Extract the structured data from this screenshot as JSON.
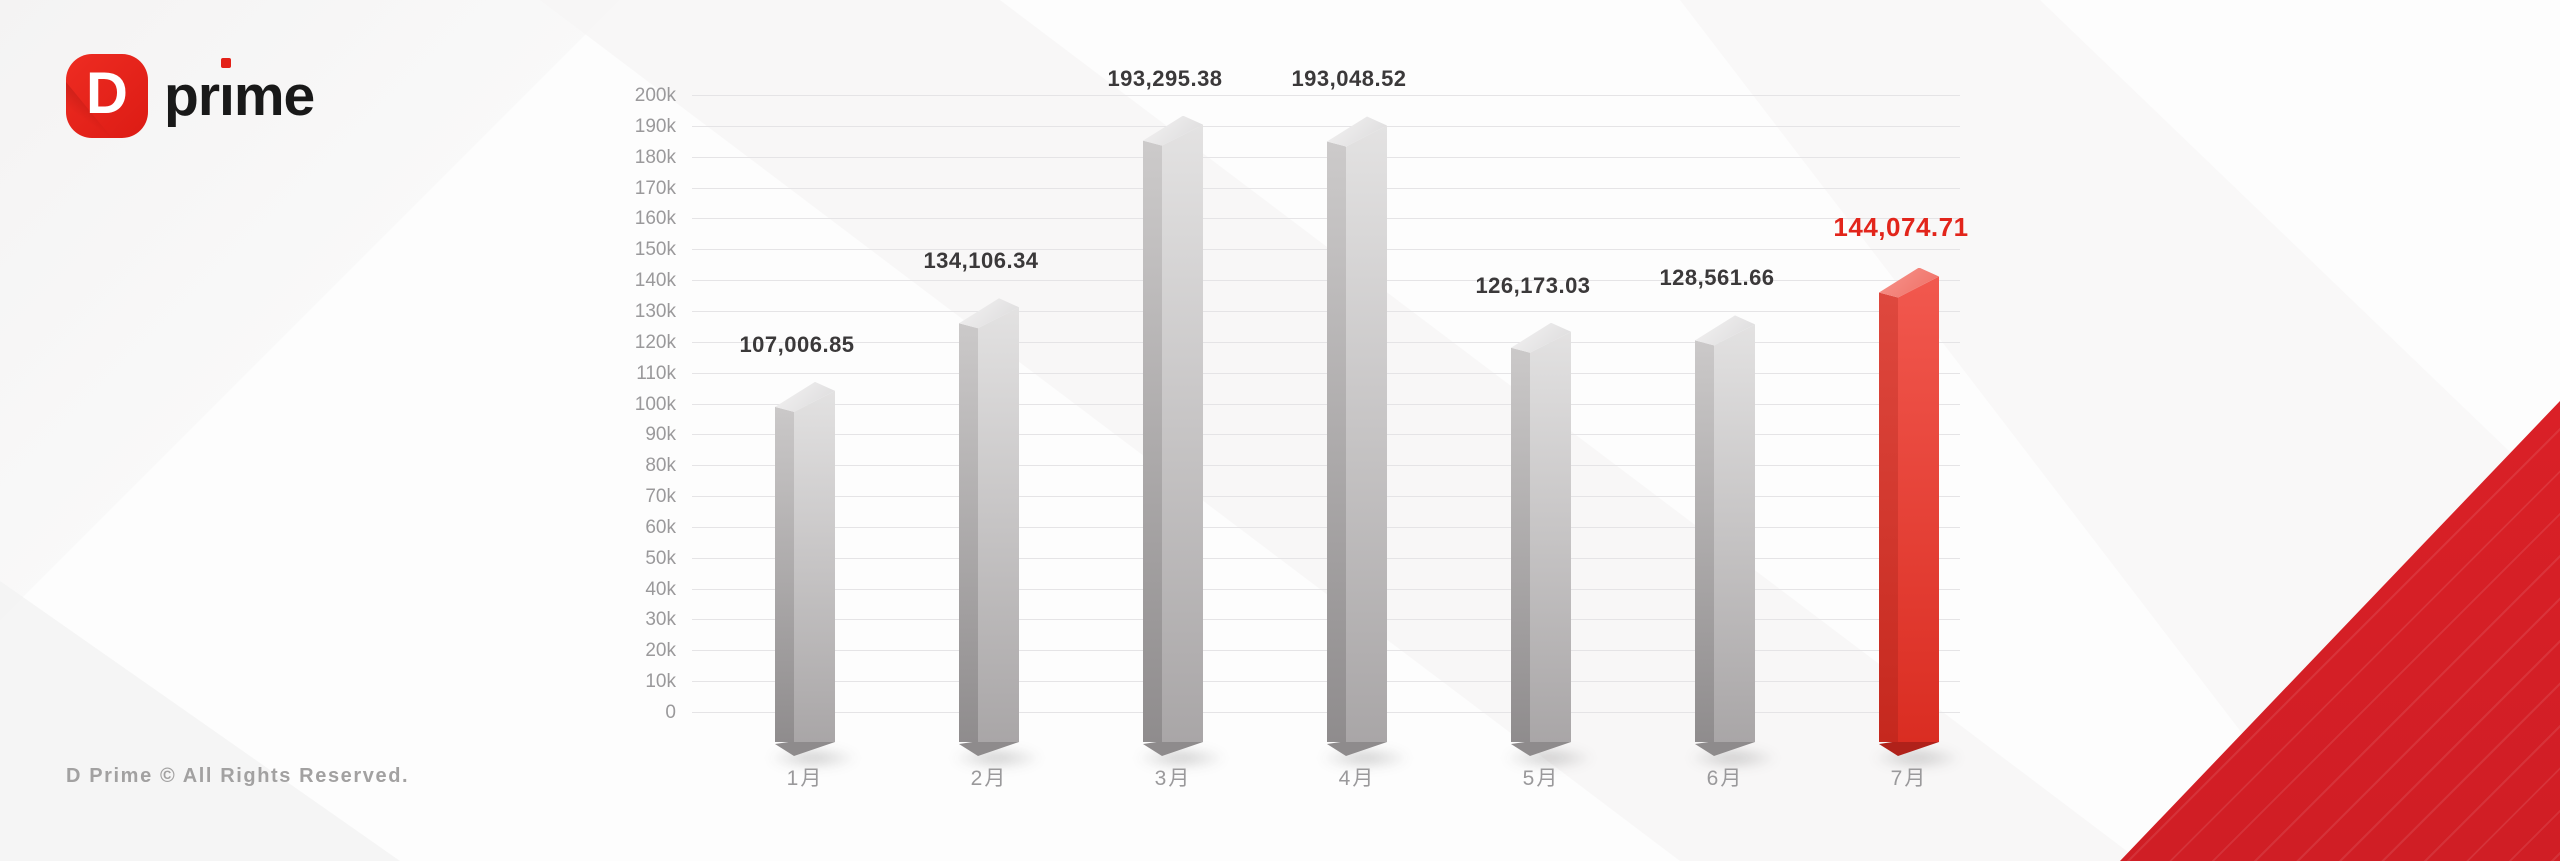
{
  "logo": {
    "icon_letter": "D",
    "text": "prime",
    "text_parts": {
      "pre": "pr",
      "i": "ı",
      "post": "me"
    }
  },
  "footer": {
    "copyright": "D Prime © All Rights Reserved."
  },
  "chart_data": {
    "type": "bar",
    "title": "",
    "xlabel": "",
    "ylabel": "",
    "categories": [
      "1月",
      "2月",
      "3月",
      "4月",
      "5月",
      "6月",
      "7月"
    ],
    "values": [
      107006.85,
      134106.34,
      193295.38,
      193048.52,
      126173.03,
      128561.66,
      144074.71
    ],
    "value_labels": [
      "107,006.85",
      "134,106.34",
      "193,295.38",
      "193,048.52",
      "126,173.03",
      "128,561.66",
      "144,074.71"
    ],
    "highlight_index": 6,
    "ylim": [
      0,
      200000
    ],
    "y_tick_step": 10000,
    "y_tick_labels": [
      "200k",
      "190k",
      "180k",
      "170k",
      "160k",
      "150k",
      "140k",
      "130k",
      "120k",
      "110k",
      "100k",
      "90k",
      "80k",
      "70k",
      "60k",
      "50k",
      "40k",
      "30k",
      "20k",
      "10k",
      "0"
    ],
    "grid": true,
    "legend": false,
    "colors": {
      "bar_gray_left": [
        "#cfcdcd",
        "#8f8c8d"
      ],
      "bar_gray_right": [
        "#e4e3e3",
        "#a9a6a7"
      ],
      "bar_gray_top": [
        "#f4f3f3",
        "#dbdadb"
      ],
      "bar_gray_foot": "#8e8b8c",
      "bar_red_left": [
        "#e04a40",
        "#c5281e"
      ],
      "bar_red_right": [
        "#f2594f",
        "#da2d22"
      ],
      "bar_red_top": [
        "#f7968e",
        "#ef6d63"
      ],
      "bar_red_foot": "#b0211a",
      "value_label": "#3b393a",
      "value_label_highlight": "#e2251b",
      "axis_text": "#9a999b",
      "gridline": "#e5e4e6",
      "corner_triangle": "#d81f26",
      "logo_red": "#e32118",
      "logo_text": "#191919"
    }
  }
}
